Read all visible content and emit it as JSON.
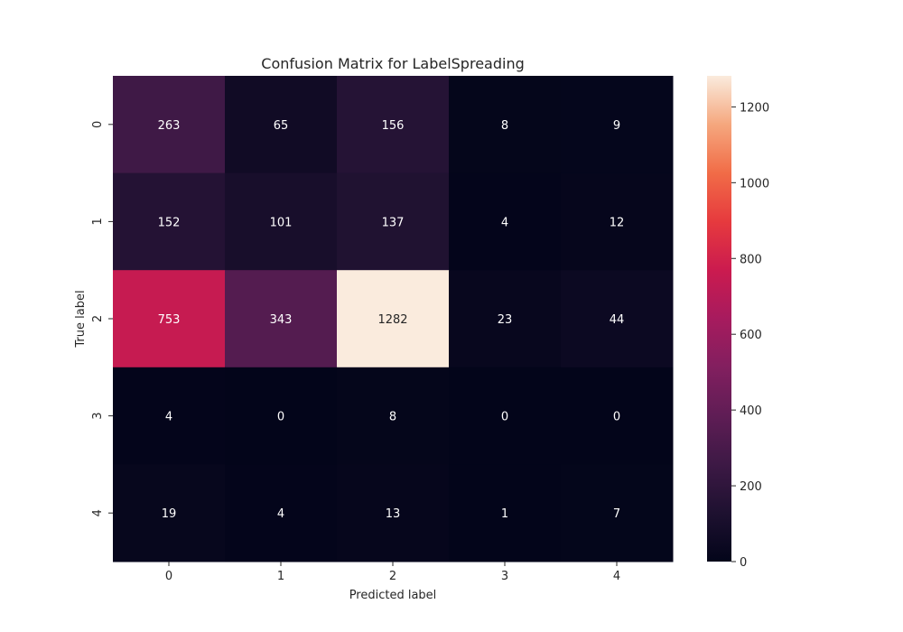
{
  "chart_data": {
    "type": "heatmap",
    "title": "Confusion Matrix for LabelSpreading",
    "xlabel": "Predicted label",
    "ylabel": "True label",
    "x_categories": [
      "0",
      "1",
      "2",
      "3",
      "4"
    ],
    "y_categories": [
      "0",
      "1",
      "2",
      "3",
      "4"
    ],
    "values": [
      [
        263,
        65,
        156,
        8,
        9
      ],
      [
        152,
        101,
        137,
        4,
        12
      ],
      [
        753,
        343,
        1282,
        23,
        44
      ],
      [
        4,
        0,
        8,
        0,
        0
      ],
      [
        19,
        4,
        13,
        1,
        7
      ]
    ],
    "colorbar": {
      "min": 0,
      "max": 1282,
      "ticks": [
        0,
        200,
        400,
        600,
        800,
        1000,
        1200
      ],
      "colormap": "rocket"
    },
    "grid": false,
    "legend": "colorbar-right"
  }
}
